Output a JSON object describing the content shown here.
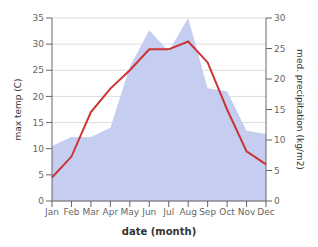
{
  "chart_data": {
    "type": "line",
    "xlabel": "date (month)",
    "ylabel": "max temp (C)",
    "y2label": "med. precipitation (kg/m2)",
    "categories": [
      "Jan",
      "Feb",
      "Mar",
      "Apr",
      "May",
      "Jun",
      "Jul",
      "Aug",
      "Sep",
      "Oct",
      "Nov",
      "Dec"
    ],
    "series": [
      {
        "type": "area",
        "axis": "y2",
        "color": "#c5cef0",
        "values": [
          9.0,
          10.5,
          10.5,
          12.0,
          22.0,
          28.0,
          24.5,
          30.0,
          18.5,
          18.0,
          11.5,
          11.0
        ]
      },
      {
        "type": "line",
        "color": "#cc3333",
        "values": [
          4.5,
          8.5,
          17.0,
          21.5,
          25.0,
          29.0,
          29.0,
          30.5,
          26.5,
          17.5,
          9.5,
          7.0
        ]
      }
    ],
    "ylim": [
      0,
      35
    ],
    "yticks": [
      0,
      5,
      10,
      15,
      20,
      25,
      30,
      35
    ],
    "y2lim": [
      0,
      30
    ],
    "y2ticks": [
      0,
      5,
      10,
      15,
      20,
      25,
      30
    ],
    "grid": true
  }
}
